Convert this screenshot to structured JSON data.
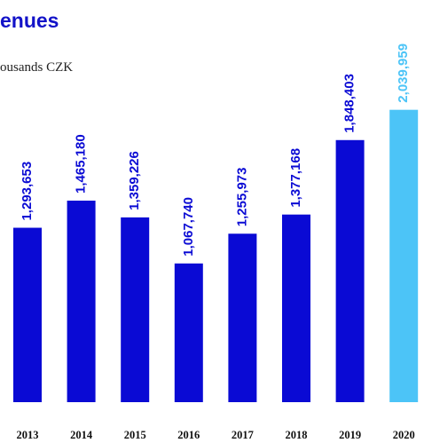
{
  "chart_data": {
    "type": "bar",
    "title": "enues",
    "subtitle": "ousands CZK",
    "categories": [
      "2013",
      "2014",
      "2015",
      "2016",
      "2017",
      "2018",
      "2019",
      "2020"
    ],
    "values": [
      1293653,
      1465180,
      1359226,
      1067740,
      1255973,
      1377168,
      1848403,
      2039959
    ],
    "value_labels": [
      "1,293,653",
      "1,465,180",
      "1,359,226",
      "1,067,740",
      "1,255,973",
      "1,377,168",
      "1,848,403",
      "2,039,959"
    ],
    "colors": [
      "#0a0ad4",
      "#0a0ad4",
      "#0a0ad4",
      "#0a0ad4",
      "#0a0ad4",
      "#0a0ad4",
      "#0a0ad4",
      "#4cc4f7"
    ],
    "ylim": [
      190000,
      2100000
    ]
  }
}
